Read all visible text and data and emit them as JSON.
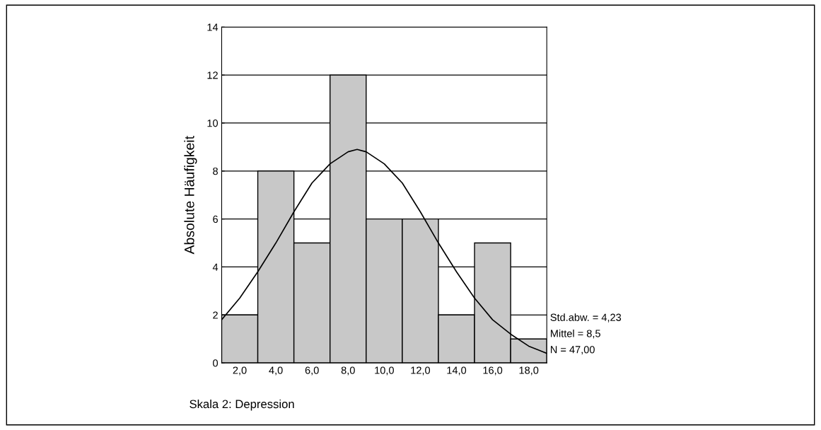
{
  "chart_data": {
    "type": "histogram",
    "bins": [
      1,
      3,
      5,
      7,
      9,
      11,
      13,
      15,
      17,
      19
    ],
    "values": [
      2,
      8,
      5,
      12,
      6,
      6,
      2,
      5,
      1
    ],
    "color": "#c8c8c8",
    "series": [
      {
        "type": "line",
        "color": "#000000",
        "x": [
          1,
          2,
          3,
          4,
          5,
          6,
          7,
          8,
          8.5,
          9,
          10,
          11,
          12,
          13,
          14,
          15,
          16,
          17,
          18,
          19
        ],
        "values": [
          1.8,
          2.7,
          3.8,
          5.0,
          6.3,
          7.5,
          8.3,
          8.8,
          8.9,
          8.8,
          8.3,
          7.5,
          6.3,
          5.0,
          3.8,
          2.7,
          1.8,
          1.2,
          0.7,
          0.4
        ]
      }
    ],
    "xlim": [
      1,
      19
    ],
    "xticks": [
      {
        "value": 2,
        "label": "2,0"
      },
      {
        "value": 4,
        "label": "4,0"
      },
      {
        "value": 6,
        "label": "6,0"
      },
      {
        "value": 8,
        "label": "8,0"
      },
      {
        "value": 10,
        "label": "10,0"
      },
      {
        "value": 12,
        "label": "12,0"
      },
      {
        "value": 14,
        "label": "14,0"
      },
      {
        "value": 16,
        "label": "16,0"
      },
      {
        "value": 18,
        "label": "18,0"
      }
    ],
    "ylim": [
      0,
      14
    ],
    "yticks": [
      0,
      2,
      4,
      6,
      8,
      10,
      12,
      14
    ],
    "ylabel": "Absolute Häufigkeit",
    "xlabel": "Skala 2: Depression",
    "annotations": [
      "Std.abw. = 4,23",
      "Mittel = 8,5",
      "N = 47,00"
    ],
    "grid": "y"
  }
}
